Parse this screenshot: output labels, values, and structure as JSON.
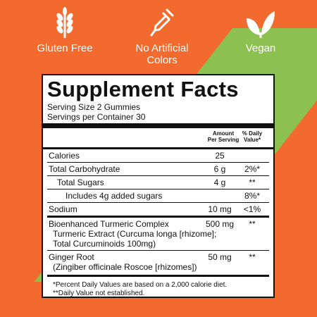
{
  "badges": [
    {
      "icon": "wheat-icon",
      "label": "Gluten Free"
    },
    {
      "icon": "dropper-icon",
      "label_line1": "No Artificial",
      "label_line2": "Colors"
    },
    {
      "icon": "leaf-icon",
      "label": "Vegan"
    }
  ],
  "facts": {
    "title": "Supplement Facts",
    "serving_size": "Serving Size 2 Gummies",
    "servings_per_container": "Servings per Container 30",
    "col_amount_line1": "Amount",
    "col_amount_line2": "Per Serving",
    "col_dv_line1": "% Daily",
    "col_dv_line2": "Value*",
    "rows": [
      {
        "name": "Calories",
        "amount": "25",
        "dv": ""
      },
      {
        "name": "Total Carbohydrate",
        "amount": "6 g",
        "dv": "2%*"
      },
      {
        "name": "Total Sugars",
        "amount": "4 g",
        "dv": "**"
      },
      {
        "name": "Includes 4g added sugars",
        "amount": "",
        "dv": "8%*"
      },
      {
        "name": "Sodium",
        "amount": "10 mg",
        "dv": "<1%"
      }
    ],
    "blend": {
      "name": "Bioenhanced Turmeric Complex",
      "sub1": "Turmeric Extract (Curcuma longa [rhizome];",
      "sub2": "Total Curcuminoids 100mg)",
      "amount": "500 mg",
      "dv": "**"
    },
    "ginger": {
      "name": "Ginger Root",
      "sub": "(Zingiber officinale Roscoe [rhizomes])",
      "amount": "50 mg",
      "dv": "**"
    },
    "footnote1": "*Percent Daily Values are based on a 2,000 calorie diet.",
    "footnote2": "**Daily Value not established."
  }
}
